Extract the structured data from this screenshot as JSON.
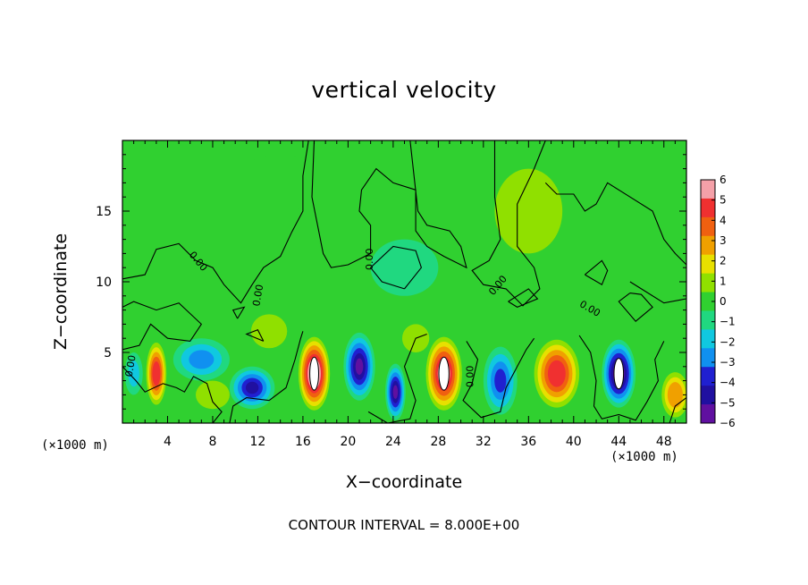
{
  "chart_data": {
    "type": "heatmap",
    "title": "vertical velocity",
    "xlabel": "X−coordinate",
    "ylabel": "Z−coordinate",
    "x_unit": "(×1000 m)",
    "y_unit": "(×1000 m)",
    "xlim": [
      0,
      50
    ],
    "ylim": [
      0,
      20
    ],
    "x_ticks": [
      4,
      8,
      12,
      16,
      20,
      24,
      28,
      32,
      36,
      40,
      44,
      48
    ],
    "y_ticks": [
      5,
      10,
      15
    ],
    "colorbar": {
      "min": -6,
      "max": 6,
      "labels": [
        "6",
        "5",
        "4",
        "3",
        "2",
        "1",
        "0",
        "−1",
        "−2",
        "−3",
        "−4",
        "−5",
        "−6"
      ],
      "colors": [
        "#f4a0a8",
        "#f03030",
        "#f06010",
        "#f0a000",
        "#e8e000",
        "#90e000",
        "#30d030",
        "#20d880",
        "#10c8e0",
        "#1090f0",
        "#2020d0",
        "#2010a0",
        "#6010a0"
      ]
    },
    "cells": [
      {
        "x": 3,
        "z": 3.5,
        "w": 0.9,
        "sz": 2.2,
        "v": 5.2
      },
      {
        "x": 1,
        "z": 3.5,
        "w": 0.8,
        "sz": 1.5,
        "v": -1.5
      },
      {
        "x": 7,
        "z": 4.5,
        "w": 2.5,
        "sz": 1.5,
        "v": -2.5
      },
      {
        "x": 11.5,
        "z": 2.5,
        "w": 2.0,
        "sz": 1.5,
        "v": -5.0
      },
      {
        "x": 17,
        "z": 3.5,
        "w": 1.4,
        "sz": 2.6,
        "v": 7.5
      },
      {
        "x": 21,
        "z": 4,
        "w": 1.4,
        "sz": 2.4,
        "v": -5.5
      },
      {
        "x": 24.2,
        "z": 2.2,
        "w": 0.9,
        "sz": 2.0,
        "v": -5.5
      },
      {
        "x": 28.5,
        "z": 3.5,
        "w": 1.6,
        "sz": 2.6,
        "v": 7.0
      },
      {
        "x": 33.5,
        "z": 3.0,
        "w": 1.5,
        "sz": 2.4,
        "v": -4.0
      },
      {
        "x": 38.5,
        "z": 3.5,
        "w": 2.0,
        "sz": 2.4,
        "v": 5.5
      },
      {
        "x": 44,
        "z": 3.5,
        "w": 1.5,
        "sz": 2.4,
        "v": -6.5
      },
      {
        "x": 49,
        "z": 2.0,
        "w": 1.2,
        "sz": 1.6,
        "v": 3.5
      },
      {
        "x": 13,
        "z": 6.5,
        "w": 1.6,
        "sz": 1.2,
        "v": 1.3
      },
      {
        "x": 26,
        "z": 6,
        "w": 1.2,
        "sz": 1.0,
        "v": 1.5
      },
      {
        "x": 8,
        "z": 2,
        "w": 1.5,
        "sz": 1.0,
        "v": 1.0
      },
      {
        "x": 25,
        "z": 11,
        "w": 3.0,
        "sz": 2.0,
        "v": -1.0
      },
      {
        "x": 36,
        "z": 15,
        "w": 3.0,
        "sz": 3.0,
        "v": 0.6
      },
      {
        "x": 14,
        "z": 17,
        "w": 4.0,
        "sz": 2.0,
        "v": 0.4
      }
    ],
    "contour_interval_text": "CONTOUR INTERVAL = 8.000E+00",
    "contour_labels": [
      "0.00",
      "0.00",
      "0.00",
      "0.00",
      "0.00",
      "0.00",
      "0.00"
    ]
  }
}
